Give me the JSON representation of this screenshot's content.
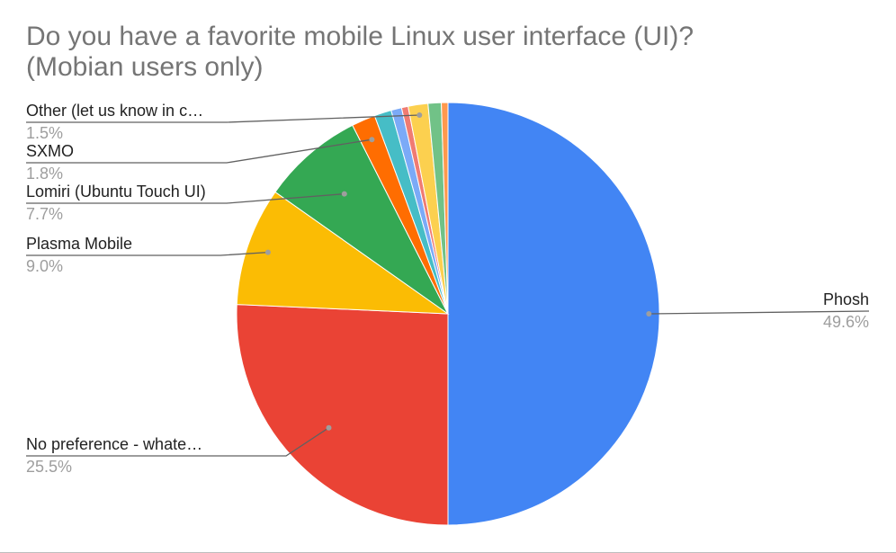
{
  "chart_data": {
    "type": "pie",
    "title_lines": [
      "Do you have a favorite mobile Linux user interface (UI)?",
      "(Mobian users only)"
    ],
    "slices": [
      {
        "label": "Phosh",
        "value": 49.6,
        "pct_label": "49.6%",
        "color": "#4285f4"
      },
      {
        "label": "No preference - whate…",
        "value": 25.5,
        "pct_label": "25.5%",
        "color": "#ea4335"
      },
      {
        "label": "Plasma Mobile",
        "value": 9.0,
        "pct_label": "9.0%",
        "color": "#fbbc04"
      },
      {
        "label": "Lomiri (Ubuntu Touch UI)",
        "value": 7.7,
        "pct_label": "7.7%",
        "color": "#34a853"
      },
      {
        "label": "SXMO",
        "value": 1.8,
        "pct_label": "1.8%",
        "color": "#ff6d01"
      },
      {
        "label": "",
        "value": 1.3,
        "pct_label": "",
        "color": "#46bdc6"
      },
      {
        "label": "",
        "value": 0.8,
        "pct_label": "",
        "color": "#7baaf7"
      },
      {
        "label": "",
        "value": 0.5,
        "pct_label": "",
        "color": "#f07b72"
      },
      {
        "label": "Other (let us know in c…",
        "value": 1.5,
        "pct_label": "1.5%",
        "color": "#fcd04f"
      },
      {
        "label": "",
        "value": 1.0,
        "pct_label": "",
        "color": "#71c287"
      },
      {
        "label": "",
        "value": 0.5,
        "pct_label": "",
        "color": "#ff994d"
      }
    ],
    "start_angle": "12 o'clock",
    "direction": "clockwise",
    "legend": "none"
  }
}
